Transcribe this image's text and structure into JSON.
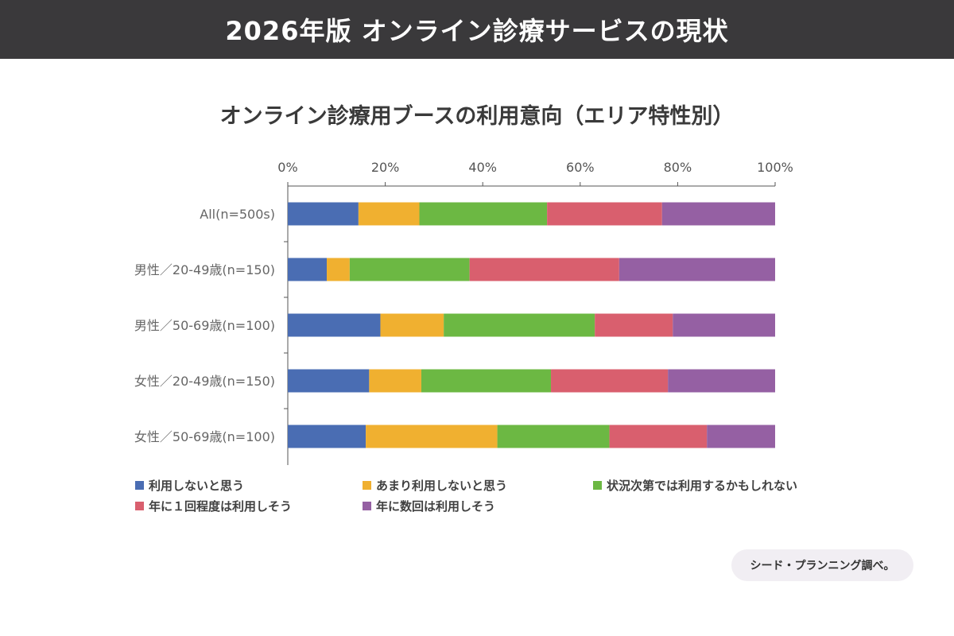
{
  "header": {
    "title": "2026年版 オンライン診療サービスの現状"
  },
  "source": "シード・プランニング調べ。",
  "chart_data": {
    "type": "bar",
    "orientation": "horizontal",
    "stacked": true,
    "title": "オンライン診療用ブースの利用意向（エリア特性別）",
    "xlim": [
      0,
      100
    ],
    "x_ticks": [
      "0%",
      "20%",
      "40%",
      "60%",
      "80%",
      "100%"
    ],
    "x_tick_position": "top",
    "categories": [
      "All(n=500s)",
      "男性／20-49歳(n=150)",
      "男性／50-69歳(n=100)",
      "女性／20-49歳(n=150)",
      "女性／50-69歳(n=100)"
    ],
    "series": [
      {
        "name": "利用しないと思う",
        "color": "#4a6db3",
        "values": [
          14.5,
          8,
          19,
          16.7,
          16
        ]
      },
      {
        "name": "あまり利用しないと思う",
        "color": "#f0b030",
        "values": [
          12.5,
          4.7,
          13,
          10.7,
          27
        ]
      },
      {
        "name": "状況次第では利用するかもしれない",
        "color": "#6cb843",
        "values": [
          26.2,
          24.6,
          31,
          26.6,
          23
        ]
      },
      {
        "name": "年に１回程度は利用しそう",
        "color": "#d95f6e",
        "values": [
          23.6,
          30.7,
          16,
          24,
          20
        ]
      },
      {
        "name": "年に数回は利用しそう",
        "color": "#9560a3",
        "values": [
          23.2,
          32,
          21,
          22,
          14
        ]
      }
    ],
    "grid": false,
    "legend_position": "bottom"
  }
}
